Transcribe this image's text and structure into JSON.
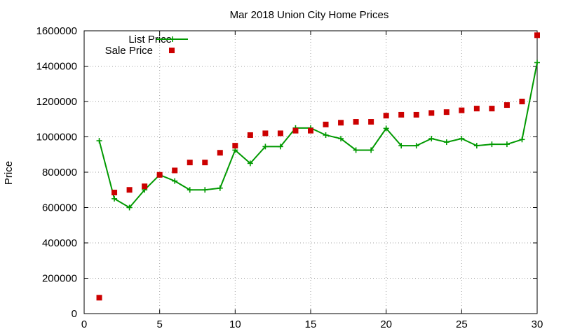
{
  "chart_data": {
    "type": "line",
    "title": "Mar 2018 Union City Home Prices",
    "xlabel": "",
    "ylabel": "Price",
    "xlim": [
      0,
      30
    ],
    "ylim": [
      0,
      1600000
    ],
    "xticks": [
      0,
      5,
      10,
      15,
      20,
      25,
      30
    ],
    "yticks": [
      0,
      200000,
      400000,
      600000,
      800000,
      1000000,
      1200000,
      1400000,
      1600000
    ],
    "grid": true,
    "legend_position": "top-left",
    "x": [
      1,
      2,
      3,
      4,
      5,
      6,
      7,
      8,
      9,
      10,
      11,
      12,
      13,
      14,
      15,
      16,
      17,
      18,
      19,
      20,
      21,
      22,
      23,
      24,
      25,
      26,
      27,
      28,
      29,
      30
    ],
    "series": [
      {
        "name": "List Price",
        "style": "linespoints",
        "marker": "plus",
        "color": "#009900",
        "values": [
          978000,
          650000,
          600000,
          700000,
          785000,
          750000,
          700000,
          700000,
          710000,
          925000,
          850000,
          945000,
          945000,
          1050000,
          1050000,
          1010000,
          990000,
          925000,
          925000,
          1048000,
          950000,
          950000,
          990000,
          970000,
          990000,
          950000,
          958000,
          958000,
          985000,
          1420000
        ]
      },
      {
        "name": "Sale Price",
        "style": "points",
        "marker": "square",
        "color": "#cc0000",
        "values": [
          90000,
          685000,
          700000,
          720000,
          785000,
          810000,
          855000,
          855000,
          910000,
          950000,
          1010000,
          1020000,
          1020000,
          1035000,
          1035000,
          1070000,
          1080000,
          1085000,
          1085000,
          1120000,
          1125000,
          1125000,
          1135000,
          1140000,
          1150000,
          1160000,
          1160000,
          1180000,
          1200000,
          1575000
        ]
      }
    ]
  }
}
